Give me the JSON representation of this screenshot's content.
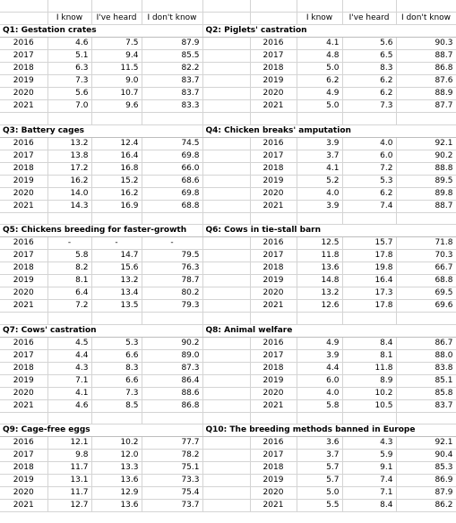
{
  "headers": {
    "left": [
      "I know",
      "I've heard",
      "I don't know"
    ],
    "right": [
      "I know",
      "I've heard",
      "I don't know"
    ]
  },
  "blocks": [
    {
      "left": {
        "title": "Q1: Gestation crates",
        "rows": [
          [
            "2016",
            "4.6",
            "7.5",
            "87.9"
          ],
          [
            "2017",
            "5.1",
            "9.4",
            "85.5"
          ],
          [
            "2018",
            "6.3",
            "11.5",
            "82.2"
          ],
          [
            "2019",
            "7.3",
            "9.0",
            "83.7"
          ],
          [
            "2020",
            "5.6",
            "10.7",
            "83.7"
          ],
          [
            "2021",
            "7.0",
            "9.6",
            "83.3"
          ]
        ]
      },
      "right": {
        "title": "Q2: Piglets' castration",
        "rows": [
          [
            "2016",
            "4.1",
            "5.6",
            "90.3"
          ],
          [
            "2017",
            "4.8",
            "6.5",
            "88.7"
          ],
          [
            "2018",
            "5.0",
            "8.3",
            "86.8"
          ],
          [
            "2019",
            "6.2",
            "6.2",
            "87.6"
          ],
          [
            "2020",
            "4.9",
            "6.2",
            "88.9"
          ],
          [
            "2021",
            "5.0",
            "7.3",
            "87.7"
          ]
        ]
      }
    },
    {
      "left": {
        "title": "Q3: Battery cages",
        "rows": [
          [
            "2016",
            "13.2",
            "12.4",
            "74.5"
          ],
          [
            "2017",
            "13.8",
            "16.4",
            "69.8"
          ],
          [
            "2018",
            "17.2",
            "16.8",
            "66.0"
          ],
          [
            "2019",
            "16.2",
            "15.2",
            "68.6"
          ],
          [
            "2020",
            "14.0",
            "16.2",
            "69.8"
          ],
          [
            "2021",
            "14.3",
            "16.9",
            "68.8"
          ]
        ]
      },
      "right": {
        "title": "Q4: Chicken breaks' amputation",
        "rows": [
          [
            "2016",
            "3.9",
            "4.0",
            "92.1"
          ],
          [
            "2017",
            "3.7",
            "6.0",
            "90.2"
          ],
          [
            "2018",
            "4.1",
            "7.2",
            "88.8"
          ],
          [
            "2019",
            "5.2",
            "5.3",
            "89.5"
          ],
          [
            "2020",
            "4.0",
            "6.2",
            "89.8"
          ],
          [
            "2021",
            "3.9",
            "7.4",
            "88.7"
          ]
        ]
      }
    },
    {
      "left": {
        "title": "Q5: Chickens breeding for faster-growth",
        "rows": [
          [
            "2016",
            "-",
            "-",
            "-"
          ],
          [
            "2017",
            "5.8",
            "14.7",
            "79.5"
          ],
          [
            "2018",
            "8.2",
            "15.6",
            "76.3"
          ],
          [
            "2019",
            "8.1",
            "13.2",
            "78.7"
          ],
          [
            "2020",
            "6.4",
            "13.4",
            "80.2"
          ],
          [
            "2021",
            "7.2",
            "13.5",
            "79.3"
          ]
        ]
      },
      "right": {
        "title": "Q6: Cows in tie-stall barn",
        "rows": [
          [
            "2016",
            "12.5",
            "15.7",
            "71.8"
          ],
          [
            "2017",
            "11.8",
            "17.8",
            "70.3"
          ],
          [
            "2018",
            "13.6",
            "19.8",
            "66.7"
          ],
          [
            "2019",
            "14.8",
            "16.4",
            "68.8"
          ],
          [
            "2020",
            "13.2",
            "17.3",
            "69.5"
          ],
          [
            "2021",
            "12.6",
            "17.8",
            "69.6"
          ]
        ]
      }
    },
    {
      "left": {
        "title": "Q7: Cows' castration",
        "rows": [
          [
            "2016",
            "4.5",
            "5.3",
            "90.2"
          ],
          [
            "2017",
            "4.4",
            "6.6",
            "89.0"
          ],
          [
            "2018",
            "4.3",
            "8.3",
            "87.3"
          ],
          [
            "2019",
            "7.1",
            "6.6",
            "86.4"
          ],
          [
            "2020",
            "4.1",
            "7.3",
            "88.6"
          ],
          [
            "2021",
            "4.6",
            "8.5",
            "86.8"
          ]
        ]
      },
      "right": {
        "title": "Q8: Animal welfare",
        "rows": [
          [
            "2016",
            "4.9",
            "8.4",
            "86.7"
          ],
          [
            "2017",
            "3.9",
            "8.1",
            "88.0"
          ],
          [
            "2018",
            "4.4",
            "11.8",
            "83.8"
          ],
          [
            "2019",
            "6.0",
            "8.9",
            "85.1"
          ],
          [
            "2020",
            "4.0",
            "10.2",
            "85.8"
          ],
          [
            "2021",
            "5.8",
            "10.5",
            "83.7"
          ]
        ]
      }
    },
    {
      "left": {
        "title": "Q9: Cage-free eggs",
        "rows": [
          [
            "2016",
            "12.1",
            "10.2",
            "77.7"
          ],
          [
            "2017",
            "9.8",
            "12.0",
            "78.2"
          ],
          [
            "2018",
            "11.7",
            "13.3",
            "75.1"
          ],
          [
            "2019",
            "13.1",
            "13.6",
            "73.3"
          ],
          [
            "2020",
            "11.7",
            "12.9",
            "75.4"
          ],
          [
            "2021",
            "12.7",
            "13.6",
            "73.7"
          ]
        ]
      },
      "right": {
        "title": "Q10: The breeding methods banned in Europe",
        "rows": [
          [
            "2016",
            "3.6",
            "4.3",
            "92.1"
          ],
          [
            "2017",
            "3.7",
            "5.9",
            "90.4"
          ],
          [
            "2018",
            "5.7",
            "9.1",
            "85.3"
          ],
          [
            "2019",
            "5.7",
            "7.4",
            "86.9"
          ],
          [
            "2020",
            "5.0",
            "7.1",
            "87.9"
          ],
          [
            "2021",
            "5.5",
            "8.4",
            "86.2"
          ]
        ]
      }
    }
  ]
}
